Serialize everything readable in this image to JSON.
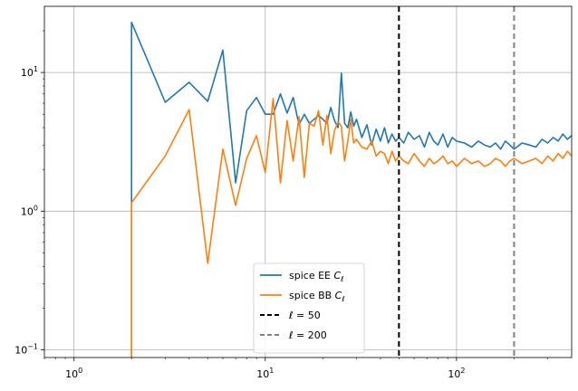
{
  "chart_data": {
    "type": "line",
    "xscale": "log",
    "yscale": "log",
    "xlim": [
      0.7,
      400
    ],
    "ylim": [
      0.088,
      30
    ],
    "grid": true,
    "xticks": [
      {
        "value": 1,
        "base": "10",
        "exp": "0"
      },
      {
        "value": 10,
        "base": "10",
        "exp": "1"
      },
      {
        "value": 100,
        "base": "10",
        "exp": "2"
      }
    ],
    "yticks": [
      {
        "value": 0.1,
        "base": "10",
        "exp": "−1"
      },
      {
        "value": 1,
        "base": "10",
        "exp": "0"
      },
      {
        "value": 10,
        "base": "10",
        "exp": "1"
      }
    ],
    "series": [
      {
        "name": "spice EE",
        "name_sub": "C",
        "name_idx": "ℓ",
        "color": "#1f77b4",
        "x": [
          2,
          2,
          3,
          4,
          5,
          6,
          7,
          8,
          9,
          10,
          11,
          12,
          13,
          14,
          15,
          16,
          17,
          18,
          19,
          20,
          21,
          22,
          23,
          24,
          25,
          26,
          27,
          28,
          29,
          30,
          32,
          34,
          36,
          38,
          40,
          42,
          44,
          46,
          48,
          50,
          53,
          56,
          60,
          64,
          68,
          72,
          76,
          80,
          85,
          90,
          95,
          100,
          110,
          120,
          130,
          140,
          150,
          160,
          170,
          180,
          190,
          200,
          220,
          240,
          260,
          280,
          300,
          320,
          340,
          360,
          380,
          400
        ],
        "y": [
          0.088,
          23,
          6.1,
          8.5,
          6.2,
          14.5,
          1.6,
          5.3,
          6.6,
          5.0,
          5.0,
          7.0,
          5.1,
          6.6,
          4.2,
          5.0,
          4.3,
          4.6,
          4.9,
          4.6,
          4.3,
          5.6,
          4.5,
          4.0,
          9.9,
          4.3,
          4.0,
          5.2,
          4.1,
          4.6,
          3.4,
          4.2,
          3.0,
          3.9,
          3.2,
          4.0,
          3.1,
          3.6,
          3.2,
          3.4,
          3.1,
          3.7,
          3.3,
          3.5,
          2.9,
          3.7,
          3.2,
          3.0,
          3.6,
          2.9,
          3.4,
          3.2,
          3.1,
          2.9,
          3.2,
          3.0,
          2.9,
          3.1,
          2.8,
          3.2,
          3.0,
          2.8,
          3.1,
          3.0,
          2.9,
          3.3,
          3.1,
          3.4,
          3.2,
          3.6,
          3.3,
          3.5
        ]
      },
      {
        "name": "spice BB",
        "name_sub": "C",
        "name_idx": "ℓ",
        "color": "#ff7f0e",
        "x": [
          2,
          2,
          3,
          4,
          5,
          6,
          7,
          8,
          9,
          10,
          11,
          12,
          13,
          14,
          15,
          16,
          17,
          18,
          19,
          20,
          21,
          22,
          23,
          24,
          25,
          26,
          27,
          28,
          29,
          30,
          32,
          34,
          36,
          38,
          40,
          42,
          44,
          46,
          48,
          50,
          53,
          56,
          60,
          64,
          68,
          72,
          76,
          80,
          85,
          90,
          95,
          100,
          110,
          120,
          130,
          140,
          150,
          160,
          170,
          180,
          190,
          200,
          220,
          240,
          260,
          280,
          300,
          320,
          340,
          360,
          380,
          400
        ],
        "y": [
          0.088,
          1.15,
          2.5,
          5.4,
          0.42,
          2.8,
          1.1,
          2.4,
          3.5,
          1.9,
          6.5,
          1.6,
          4.5,
          2.3,
          4.8,
          1.75,
          4.3,
          4.1,
          5.3,
          3.0,
          4.9,
          2.6,
          3.8,
          4.4,
          4.1,
          2.3,
          3.2,
          4.6,
          3.1,
          3.3,
          2.9,
          2.8,
          3.2,
          2.5,
          2.7,
          2.6,
          2.2,
          2.7,
          2.3,
          2.5,
          2.3,
          2.2,
          2.6,
          2.3,
          2.1,
          2.4,
          2.2,
          2.3,
          2.5,
          2.2,
          2.3,
          2.1,
          2.4,
          2.2,
          2.3,
          2.1,
          2.2,
          2.4,
          2.3,
          2.1,
          2.3,
          2.4,
          2.2,
          2.3,
          2.4,
          2.2,
          2.5,
          2.3,
          2.6,
          2.4,
          2.7,
          2.5
        ]
      }
    ],
    "vlines": [
      {
        "label_pre": "ℓ",
        "label_val": "50",
        "x": 50,
        "color": "#000000",
        "dash": "6,4"
      },
      {
        "label_pre": "ℓ",
        "label_val": "200",
        "x": 200,
        "color": "#808080",
        "dash": "6,4"
      }
    ],
    "legend_position": "lower-center"
  }
}
